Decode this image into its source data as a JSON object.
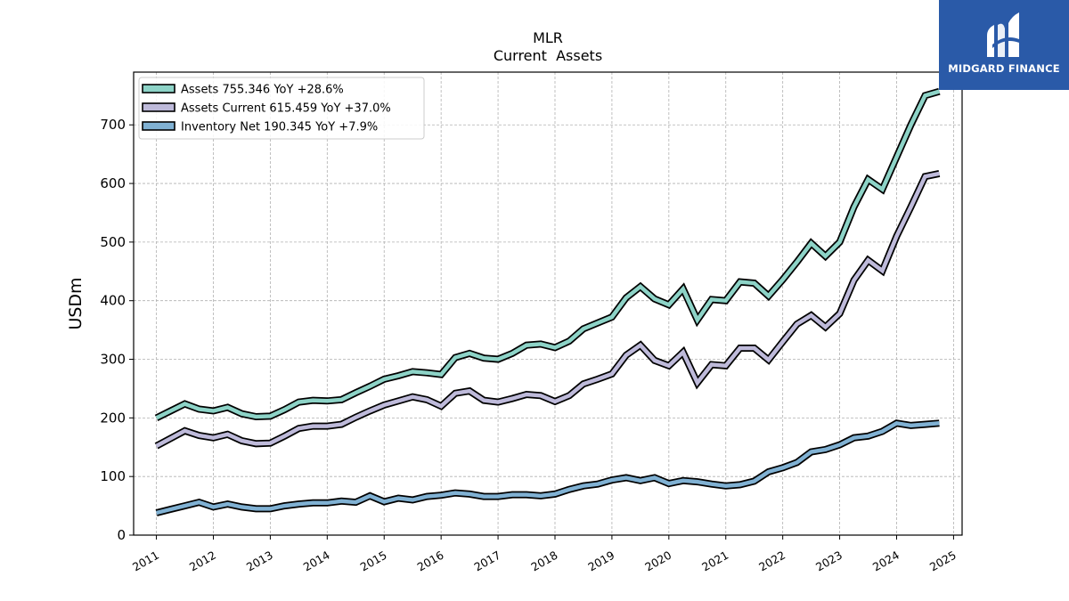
{
  "chart_data": {
    "type": "line",
    "title": "MLR",
    "subtitle": "Current  Assets",
    "ylabel": "USDm",
    "xlabel": "",
    "xlim": [
      2010.6,
      2025.15
    ],
    "ylim": [
      0,
      790
    ],
    "x_ticks": [
      "2011",
      "2012",
      "2013",
      "2014",
      "2015",
      "2016",
      "2017",
      "2018",
      "2019",
      "2020",
      "2021",
      "2022",
      "2023",
      "2024",
      "2025"
    ],
    "y_ticks": [
      0,
      100,
      200,
      300,
      400,
      500,
      600,
      700
    ],
    "grid": true,
    "legend_position": "top-left",
    "x": [
      2011.0,
      2011.25,
      2011.5,
      2011.75,
      2012.0,
      2012.25,
      2012.5,
      2012.75,
      2013.0,
      2013.25,
      2013.5,
      2013.75,
      2014.0,
      2014.25,
      2014.5,
      2014.75,
      2015.0,
      2015.25,
      2015.5,
      2015.75,
      2016.0,
      2016.25,
      2016.5,
      2016.75,
      2017.0,
      2017.25,
      2017.5,
      2017.75,
      2018.0,
      2018.25,
      2018.5,
      2018.75,
      2019.0,
      2019.25,
      2019.5,
      2019.75,
      2020.0,
      2020.25,
      2020.5,
      2020.75,
      2021.0,
      2021.25,
      2021.5,
      2021.75,
      2022.0,
      2022.25,
      2022.5,
      2022.75,
      2023.0,
      2023.25,
      2023.5,
      2023.75,
      2024.0,
      2024.25,
      2024.5,
      2024.75
    ],
    "series": [
      {
        "name": "Assets  755.346 YoY +28.6%",
        "color": "#8dd3c7",
        "values": [
          200,
          212,
          224,
          215,
          212,
          218,
          207,
          202,
          203,
          214,
          227,
          230,
          229,
          231,
          243,
          254,
          266,
          272,
          279,
          277,
          274,
          303,
          310,
          302,
          300,
          310,
          324,
          326,
          320,
          331,
          352,
          362,
          372,
          405,
          424,
          403,
          393,
          420,
          367,
          402,
          400,
          432,
          430,
          408,
          436,
          466,
          498,
          476,
          500,
          560,
          607,
          590,
          645,
          700,
          750,
          757
        ]
      },
      {
        "name": "Assets Current  615.459 YoY +37.0%",
        "color": "#bebada",
        "values": [
          152,
          165,
          178,
          170,
          166,
          172,
          161,
          156,
          157,
          169,
          182,
          186,
          186,
          189,
          201,
          212,
          222,
          229,
          236,
          231,
          220,
          242,
          246,
          230,
          227,
          233,
          240,
          238,
          228,
          238,
          258,
          266,
          275,
          307,
          324,
          298,
          289,
          312,
          260,
          291,
          289,
          319,
          319,
          299,
          330,
          360,
          375,
          355,
          378,
          435,
          469,
          451,
          510,
          560,
          612,
          617
        ]
      },
      {
        "name": "Inventory Net  190.345 YoY +7.9%",
        "color": "#80b1d3",
        "values": [
          38,
          44,
          50,
          56,
          48,
          53,
          48,
          45,
          45,
          50,
          53,
          55,
          55,
          58,
          56,
          67,
          57,
          63,
          60,
          66,
          68,
          72,
          70,
          66,
          66,
          69,
          69,
          67,
          70,
          78,
          84,
          87,
          94,
          98,
          93,
          98,
          88,
          93,
          91,
          87,
          84,
          86,
          92,
          108,
          115,
          124,
          142,
          146,
          154,
          166,
          169,
          177,
          191,
          187,
          189,
          191
        ]
      }
    ]
  },
  "logo": {
    "text": "MIDGARD FINANCE"
  }
}
